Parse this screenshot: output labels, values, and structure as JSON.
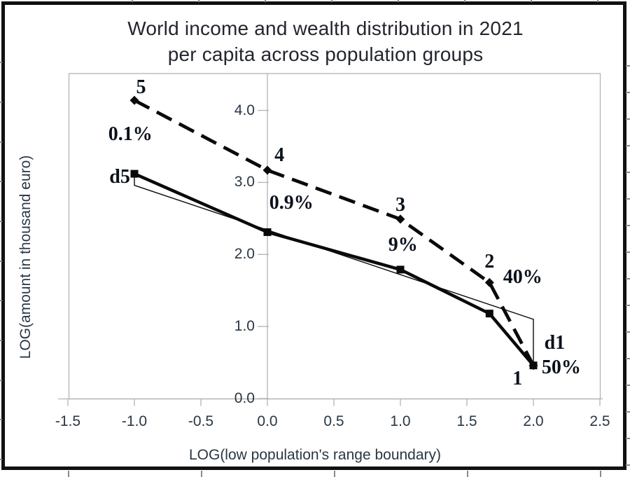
{
  "chart_data": {
    "type": "line",
    "title_lines": [
      "World income and wealth distribution in 2021",
      "per capita across population groups"
    ],
    "xlabel": "LOG(low population's range boundary)",
    "ylabel": "LOG(amount in thousand euro)",
    "xlim": [
      -1.5,
      2.5
    ],
    "ylim": [
      0,
      4.53
    ],
    "grid": "off",
    "legend": "none",
    "x_ticks": {
      "values": [
        -1.5,
        -1.0,
        -0.5,
        0.0,
        0.5,
        1.0,
        1.5,
        2.0,
        2.5
      ],
      "labels": [
        "-1.5",
        "-1.0",
        "-0.5",
        "0.0",
        "0.5",
        "1.0",
        "1.5",
        "2.0",
        "2.5"
      ]
    },
    "y_ticks": {
      "values": [
        0,
        1,
        2,
        3,
        4
      ],
      "labels": [
        "0.0",
        "1.0",
        "2.0",
        "3.0",
        "4.0"
      ]
    },
    "series": [
      {
        "name": "wealth-distribution-dashed",
        "style": "dashed",
        "marker": "diamond",
        "points": [
          [
            -1.0,
            4.14
          ],
          [
            0.0,
            3.17
          ],
          [
            1.0,
            2.49
          ],
          [
            1.67,
            1.61
          ],
          [
            2.0,
            0.46
          ]
        ]
      },
      {
        "name": "income-distribution-solid",
        "style": "solid",
        "marker": "square",
        "points": [
          [
            -1.0,
            3.12
          ],
          [
            0.0,
            2.31
          ],
          [
            1.0,
            1.79
          ],
          [
            1.67,
            1.18
          ],
          [
            2.0,
            0.46
          ]
        ]
      },
      {
        "name": "linear-reference-with-deviations",
        "style": "thin",
        "marker": "none",
        "points": [
          [
            -1.0,
            3.1
          ],
          [
            -1.0,
            2.96
          ],
          [
            2.0,
            1.1
          ],
          [
            2.0,
            0.49
          ]
        ]
      }
    ],
    "annotations": [
      {
        "text": "5",
        "x": -0.95,
        "y": 4.32
      },
      {
        "text": "0.1%",
        "x": -1.03,
        "y": 3.67
      },
      {
        "text": "4",
        "x": 0.09,
        "y": 3.37
      },
      {
        "text": "0.9%",
        "x": 0.18,
        "y": 2.71
      },
      {
        "text": "3",
        "x": 1.0,
        "y": 2.68
      },
      {
        "text": "9%",
        "x": 1.02,
        "y": 2.13
      },
      {
        "text": "2",
        "x": 1.67,
        "y": 1.9
      },
      {
        "text": "40%",
        "x": 1.92,
        "y": 1.68
      },
      {
        "text": "d5",
        "x": -1.11,
        "y": 3.07
      },
      {
        "text": "d1",
        "x": 2.16,
        "y": 0.77
      },
      {
        "text": "50%",
        "x": 2.21,
        "y": 0.43
      },
      {
        "text": "1",
        "x": 1.88,
        "y": 0.27
      }
    ]
  },
  "colors": {
    "background": "#ffffff",
    "frame_border": "#111111",
    "axis": "#b3b3b3",
    "grid_stub": "#8a8a8a",
    "series": "#0a0a0a",
    "tick_text": "#2a3744",
    "title_text": "#23262e",
    "annotation_text": "#0b111c"
  }
}
